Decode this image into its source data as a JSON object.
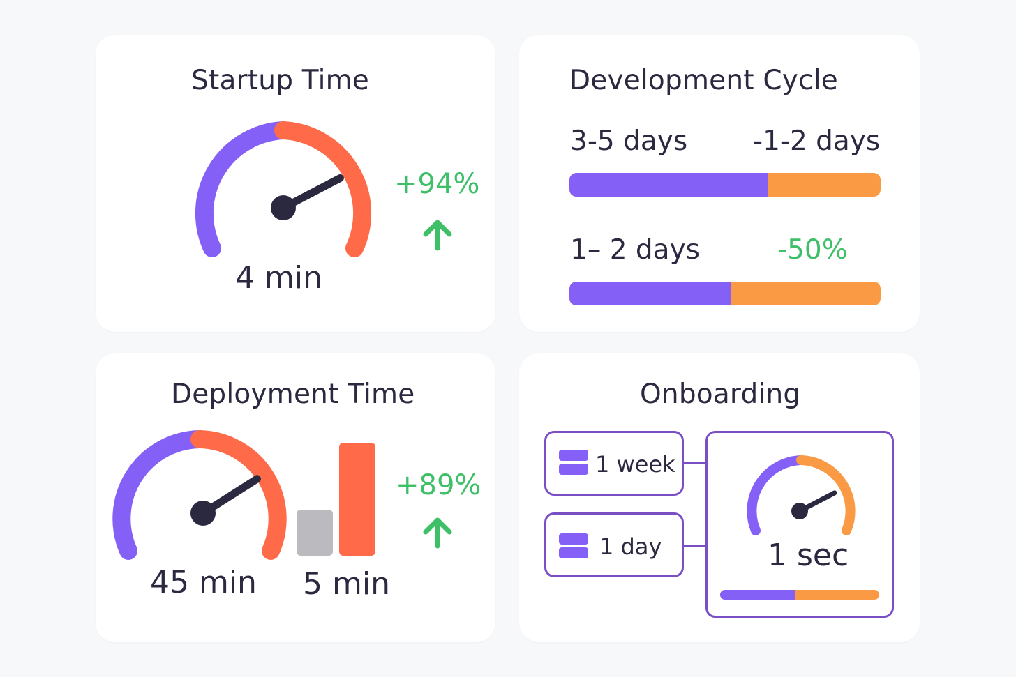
{
  "colors": {
    "purple": "#8460f7",
    "red": "#ff6a48",
    "orange": "#fa9a44",
    "green": "#3fbf68",
    "gray": "#bbbbbf",
    "dark": "#2b2940",
    "frame": "#7a4fc4"
  },
  "startup": {
    "title": "Startup Time",
    "value": "4 min",
    "change": "+94%",
    "gauge_needle_fraction": 0.76,
    "trend_icon": "arrow-up-icon"
  },
  "development": {
    "title": "Development Cycle",
    "row1_left": "3-5 days",
    "row1_right": "-1-2 days",
    "row1_fill_fraction": 0.64,
    "row2_left": "1– 2 days",
    "row2_right": "-50%",
    "row2_fill_fraction": 0.52
  },
  "deployment": {
    "title": "Deployment Time",
    "value_before": "45 min",
    "value_after": "5 min",
    "change": "+89%",
    "gauge_needle_fraction": 0.74,
    "bar_before_fraction": 0.41,
    "bar_after_fraction": 1.0,
    "trend_icon": "arrow-up-icon"
  },
  "onboarding": {
    "title": "Onboarding",
    "option1_label": "1 week",
    "option2_label": "1 day",
    "result_value": "1 sec",
    "result_fill_fraction": 0.47,
    "gauge_needle_fraction": 0.76,
    "option_icon": "calendar-icon"
  }
}
